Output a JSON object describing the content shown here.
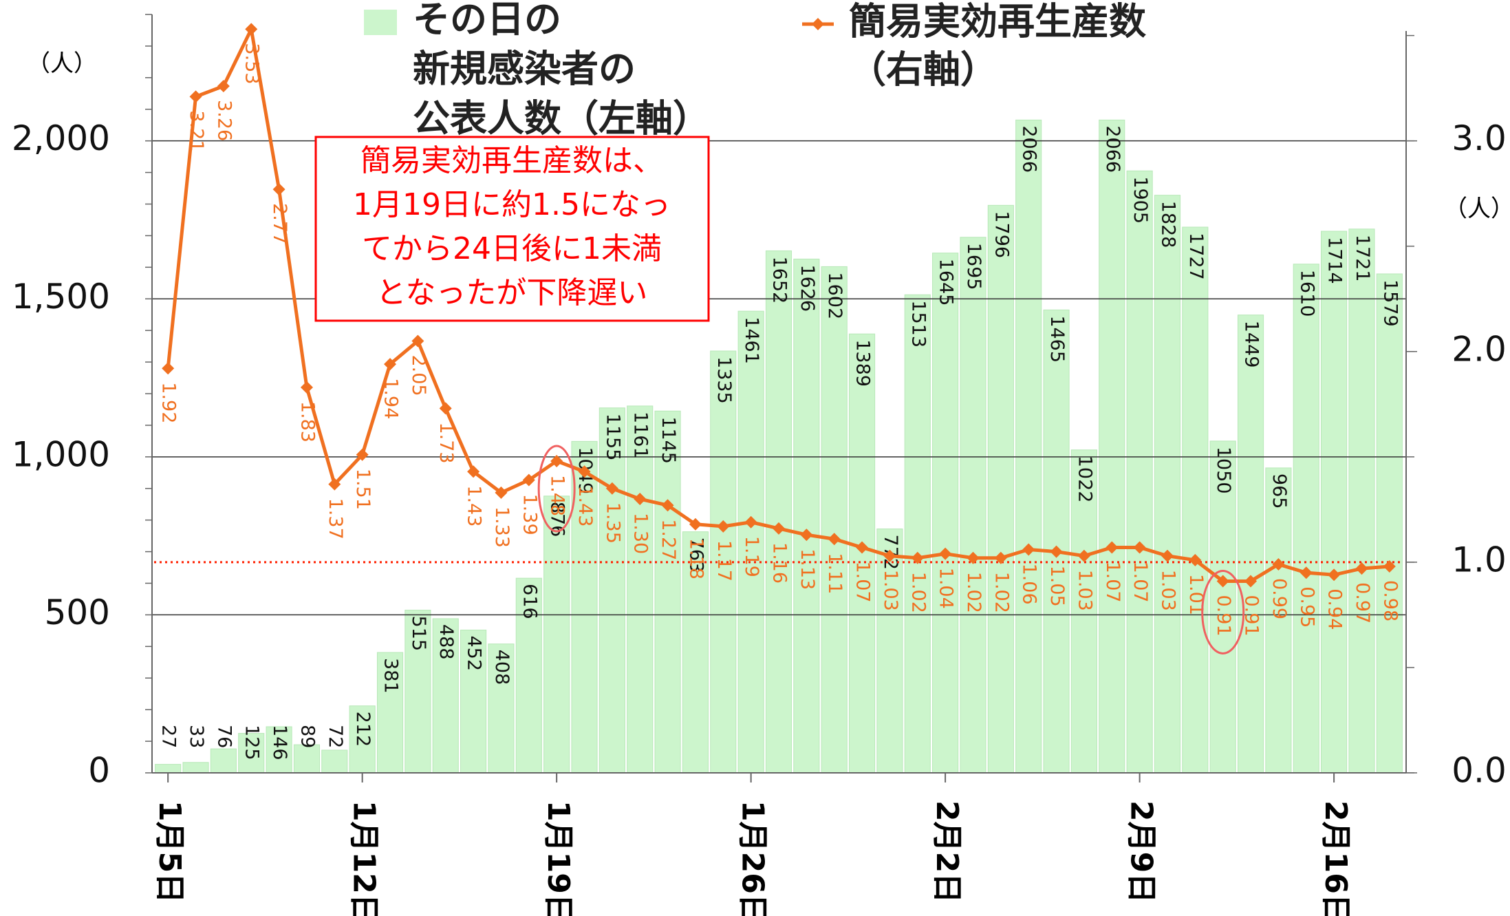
{
  "chart_data": {
    "type": "bar_line",
    "categories": [
      "1月5日",
      null,
      null,
      null,
      null,
      null,
      null,
      "1月12日",
      null,
      null,
      null,
      null,
      null,
      null,
      "1月19日",
      null,
      null,
      null,
      null,
      null,
      null,
      "1月26日",
      null,
      null,
      null,
      null,
      null,
      null,
      "2月2日",
      null,
      null,
      null,
      null,
      null,
      null,
      "2月9日",
      null,
      null,
      null,
      null,
      null,
      null,
      "2月16日",
      null,
      null
    ],
    "series": [
      {
        "name": [
          "その日の",
          "新規感染者の",
          "公表人数（左軸）"
        ],
        "color": "#ccf5cc",
        "axis": "y",
        "values": [
          27,
          33,
          76,
          125,
          146,
          89,
          72,
          212,
          381,
          515,
          488,
          452,
          408,
          616,
          876,
          1049,
          1155,
          1161,
          1145,
          763,
          1335,
          1461,
          1652,
          1626,
          1602,
          1389,
          772,
          1513,
          1645,
          1695,
          1796,
          2066,
          1465,
          1022,
          2066,
          1905,
          1828,
          1727,
          1050,
          1449,
          965,
          1610,
          1714,
          1721,
          1579
        ]
      },
      {
        "name": [
          "簡易実効再生産数",
          "（右軸）"
        ],
        "color": "#f07020",
        "axis": "y2",
        "values": [
          1.92,
          3.21,
          3.26,
          3.53,
          2.77,
          1.83,
          1.37,
          1.51,
          1.94,
          2.05,
          1.73,
          1.43,
          1.33,
          1.39,
          1.48,
          1.43,
          1.35,
          1.3,
          1.27,
          1.18,
          1.17,
          1.19,
          1.16,
          1.13,
          1.11,
          1.07,
          1.03,
          1.02,
          1.04,
          1.02,
          1.02,
          1.06,
          1.05,
          1.03,
          1.07,
          1.07,
          1.03,
          1.01,
          0.91,
          0.91,
          0.99,
          0.95,
          0.94,
          0.97,
          0.98
        ],
        "value_labels": [
          "1.92",
          "3.21",
          "3.26",
          "3.53",
          "2.77",
          "1.83",
          "1.37",
          "1.51",
          "1.94",
          "2.05",
          "1.73",
          "1.43",
          "1.33",
          "1.39",
          "1.48",
          "1.43",
          "1.35",
          "1.30",
          "1.27",
          "1.18",
          "1.17",
          "1.19",
          "1.16",
          "1.13",
          "1.11",
          "1.07",
          "1.03",
          "1.02",
          "1.04",
          "1.02",
          "1.02",
          "1.06",
          "1.05",
          "1.03",
          "1.07",
          "1.07",
          "1.03",
          "1.01",
          "0.91",
          "0.91",
          "0.99",
          "0.95",
          "0.94",
          "0.97",
          "0.98"
        ]
      }
    ],
    "ylim": [
      0,
      2400
    ],
    "yticks": [
      0,
      500,
      {
        "value": 1000,
        "label": "1,000"
      },
      {
        "value": 1500,
        "label": "1,500"
      },
      {
        "value": 2000,
        "label": "2,000"
      }
    ],
    "y2lim": [
      0,
      3.6
    ],
    "y2ticks": [
      {
        "value": 0,
        "label": "0.0"
      },
      {
        "value": 1,
        "label": "1.0"
      },
      {
        "value": 2,
        "label": "2.0"
      },
      {
        "value": 3,
        "label": "3.0"
      }
    ],
    "y_unit": "（人）",
    "y2_unit": "（人）",
    "threshold": {
      "value": 1,
      "axis": "y2",
      "color": "#ff2000"
    },
    "annotation": [
      "簡易実効再生産数は、",
      "1月19日に約1.5になっ",
      "てから24日後に1未満",
      "となったが下降遅い"
    ],
    "grid": true
  }
}
